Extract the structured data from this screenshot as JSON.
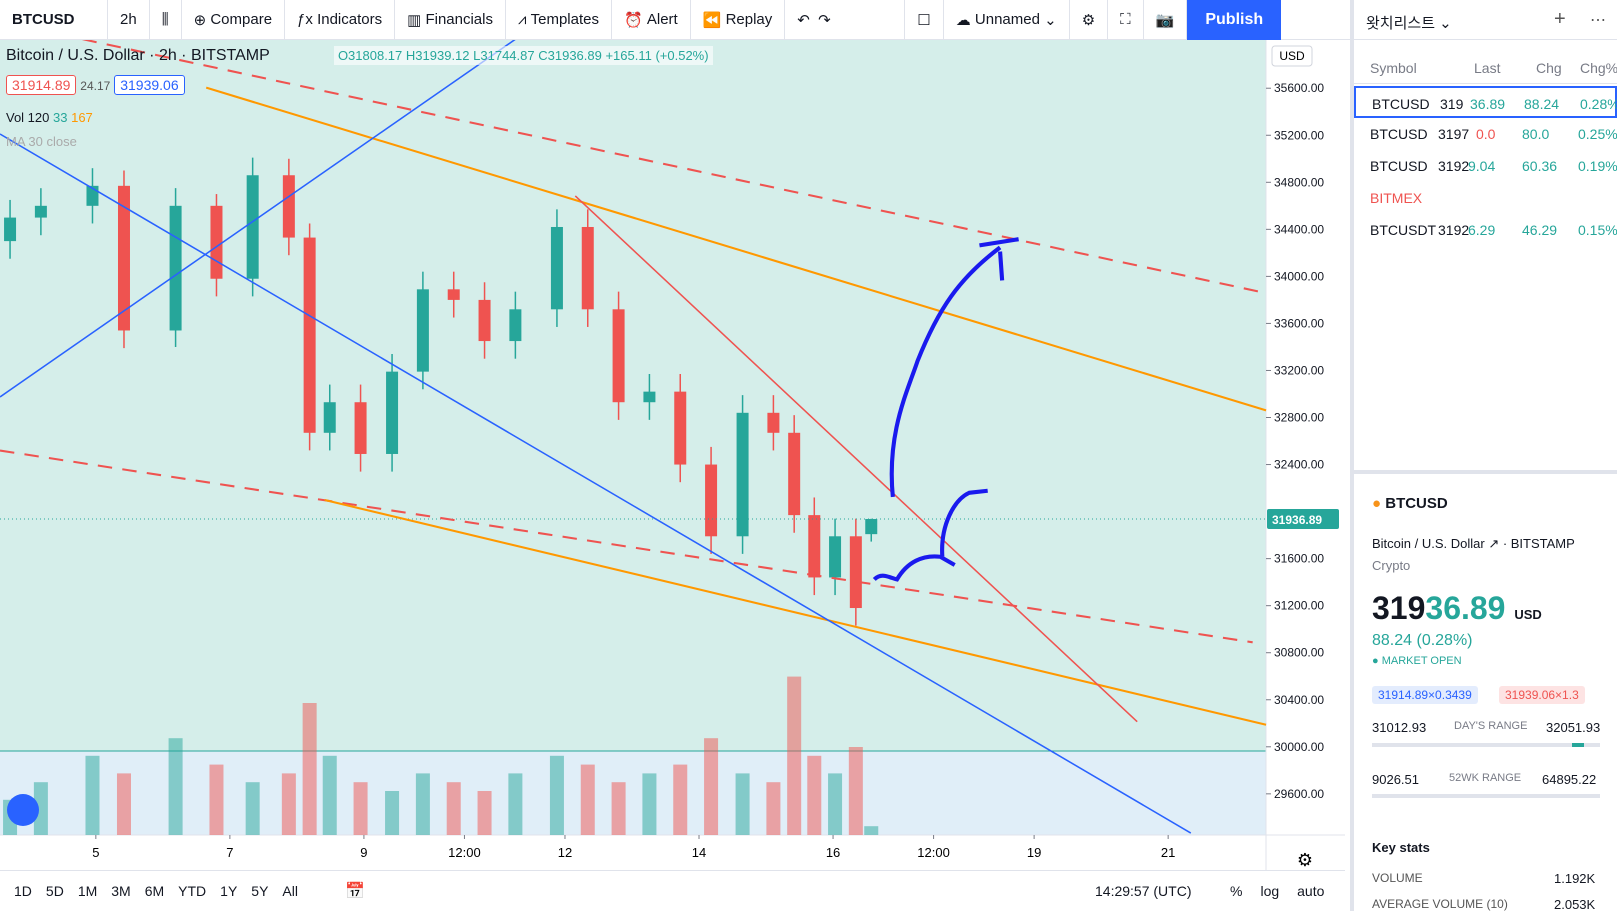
{
  "toolbar": {
    "symbol": "BTCUSD",
    "interval": "2h",
    "items": [
      "Compare",
      "Indicators",
      "Financials",
      "Templates",
      "Alert",
      "Replay"
    ],
    "layout_name": "Unnamed",
    "publish": "Publish"
  },
  "legend": {
    "name": "Bitcoin / U.S. Dollar",
    "interval": "2h",
    "exchange": "BITSTAMP",
    "ohlc": [
      "O31808.17",
      "H31939.12",
      "L31744.87",
      "C31936.89 +165.11 (+0.52%)"
    ],
    "bid": "31914.89",
    "spread": "24.17",
    "ask": "31939.06",
    "vol_label": "Vol 120",
    "vol_values": [
      "33",
      "167"
    ],
    "ma_label": "MA 30 close"
  },
  "chart_data": {
    "type": "candlestick",
    "currency": "USD",
    "up_color": "#26a69a",
    "down_color": "#ef5350",
    "x": [
      3.72,
      4.18,
      4.95,
      5.42,
      6.19,
      6.8,
      7.34,
      7.88,
      8.19,
      8.49,
      8.95,
      9.42,
      9.88,
      10.34,
      10.8,
      11.26,
      11.88,
      12.34,
      12.8,
      13.26,
      13.72,
      14.18,
      14.65,
      15.11,
      15.42,
      15.72,
      16.03,
      16.34,
      16.57
    ],
    "open": [
      34300,
      34500,
      34600,
      34770,
      33540,
      34600,
      33980,
      34860,
      34330,
      32670,
      32930,
      32490,
      33190,
      33890,
      33800,
      33450,
      33720,
      34420,
      33720,
      32930,
      33020,
      32400,
      31790,
      32840,
      32670,
      31970,
      31440,
      31790,
      31808.17
    ],
    "high": [
      34650,
      34750,
      34920,
      34900,
      34750,
      34700,
      35010,
      35000,
      34450,
      33080,
      33080,
      33340,
      34040,
      34040,
      33950,
      33870,
      34570,
      34570,
      33870,
      33170,
      33170,
      32550,
      32990,
      32990,
      32820,
      32120,
      31940,
      31940,
      31939.12
    ],
    "low": [
      34150,
      34350,
      34450,
      33390,
      33400,
      33830,
      33830,
      34180,
      32520,
      32520,
      32340,
      32340,
      33040,
      33650,
      33300,
      33300,
      33570,
      33570,
      32780,
      32780,
      32250,
      31640,
      31640,
      32520,
      31820,
      31290,
      31290,
      31030,
      31744.87
    ],
    "close": [
      34500,
      34600,
      34770,
      33540,
      34600,
      33980,
      34860,
      34330,
      32670,
      32930,
      32490,
      33190,
      33890,
      33800,
      33450,
      33720,
      34420,
      33720,
      32930,
      33020,
      32400,
      31790,
      32840,
      32670,
      31970,
      31440,
      31790,
      31180,
      31936.89
    ],
    "volume": [
      40,
      60,
      90,
      70,
      110,
      80,
      60,
      70,
      150,
      90,
      60,
      50,
      70,
      60,
      50,
      70,
      90,
      80,
      60,
      70,
      80,
      110,
      70,
      60,
      180,
      90,
      70,
      100,
      10
    ],
    "vlim": [
      0,
      250
    ],
    "xlim": [
      3.57,
      22.46
    ],
    "xticks": [
      5,
      7,
      9,
      {
        "value": 10.5,
        "label": "12:00"
      },
      12,
      14,
      16,
      {
        "value": 17.5,
        "label": "12:00"
      },
      19,
      21
    ],
    "ylim": [
      29250,
      36010
    ],
    "yticks": [
      {
        "value": 29600,
        "label": "29600.00"
      },
      {
        "value": 30000,
        "label": "30000.00"
      },
      {
        "value": 30400,
        "label": "30400.00"
      },
      {
        "value": 30800,
        "label": "30800.00"
      },
      {
        "value": 31200,
        "label": "31200.00"
      },
      {
        "value": 31600,
        "label": "31600.00"
      },
      {
        "value": 32400,
        "label": "32400.00"
      },
      {
        "value": 32800,
        "label": "32800.00"
      },
      {
        "value": 33200,
        "label": "33200.00"
      },
      {
        "value": 33600,
        "label": "33600.00"
      },
      {
        "value": 34000,
        "label": "34000.00"
      },
      {
        "value": 34400,
        "label": "34400.00"
      },
      {
        "value": 34800,
        "label": "34800.00"
      },
      {
        "value": 35200,
        "label": "35200.00"
      },
      {
        "value": 35600,
        "label": "35600.00"
      }
    ],
    "last_price": {
      "value": 31936.89,
      "label": "31936.89"
    }
  },
  "bottom": {
    "ranges": [
      "1D",
      "5D",
      "1M",
      "3M",
      "6M",
      "YTD",
      "1Y",
      "5Y",
      "All"
    ],
    "time": "14:29:57 (UTC)",
    "options": [
      "%",
      "log",
      "auto"
    ]
  },
  "watchlist": {
    "title": "왓치리스트",
    "headers": [
      "Symbol",
      "Last",
      "Chg",
      "Chg%"
    ],
    "rows": [
      [
        "BTCUSD",
        "319",
        "36.89",
        "88.24",
        "0.28%"
      ],
      [
        "BTCUSD",
        "3197",
        "0.0",
        "80.0",
        "0.25%"
      ],
      [
        "BTCUSD",
        "3192",
        "9.04",
        "60.36",
        "0.19%"
      ]
    ],
    "section": "BITMEX",
    "row_usdt": [
      "BTCUSDT",
      "3192",
      "6.29",
      "46.29",
      "0.15%"
    ]
  },
  "details": {
    "symbol": "BTCUSD",
    "name": "Bitcoin / U.S. Dollar",
    "exchange": "BITSTAMP",
    "type": "Crypto",
    "price_head": "319",
    "price_tail": "36.89",
    "currency": "USD",
    "change": "88.24 (0.28%)",
    "status": "MARKET OPEN",
    "bid": "31914.89×0.3439",
    "ask": "31939.06×1.3",
    "day_low": "31012.93",
    "day_label": "DAY'S RANGE",
    "day_high": "32051.93",
    "wk_low": "9026.51",
    "wk_label": "52WK RANGE",
    "wk_high": "64895.22",
    "key_stats": "Key stats",
    "stats": [
      [
        "VOLUME",
        "1.192K"
      ],
      [
        "AVERAGE VOLUME (10)",
        "2.053K"
      ]
    ]
  }
}
